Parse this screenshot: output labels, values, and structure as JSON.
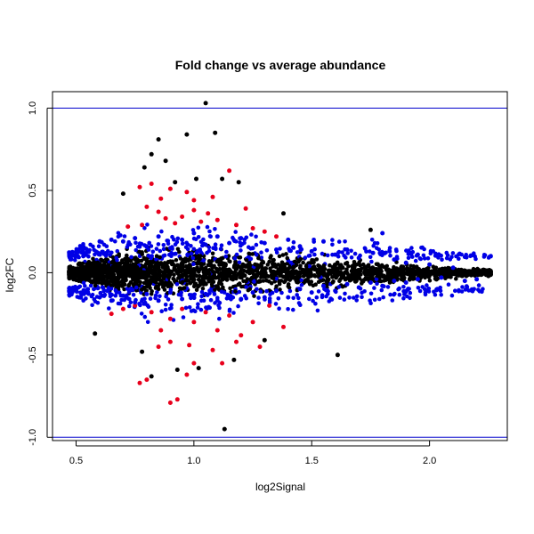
{
  "chart_data": {
    "type": "scatter",
    "title": "Fold change vs average abundance",
    "xlabel": "log2Signal",
    "ylabel": "log2FC",
    "xlim": [
      0.4,
      2.33
    ],
    "ylim": [
      -1.02,
      1.1
    ],
    "x_ticks": [
      0.5,
      1.0,
      1.5,
      2.0
    ],
    "x_tick_labels": [
      "0.5",
      "1.0",
      "1.5",
      "2.0"
    ],
    "y_ticks": [
      -1.0,
      -0.5,
      0.0,
      0.5,
      1.0
    ],
    "y_tick_labels": [
      "-1.0",
      "-0.5",
      "0.0",
      "0.5",
      "1.0"
    ],
    "hlines": [
      1.0,
      -1.0
    ],
    "grid": false,
    "colors": {
      "points": "#000000",
      "hline": "#0000cc",
      "frame": "#000000"
    },
    "series": [
      {
        "color": "#000000",
        "points": [
          [
            1.05,
            1.03
          ],
          [
            0.97,
            0.84
          ],
          [
            1.09,
            0.85
          ],
          [
            0.85,
            0.81
          ],
          [
            0.82,
            0.72
          ],
          [
            0.88,
            0.68
          ],
          [
            0.79,
            0.64
          ],
          [
            1.01,
            0.57
          ],
          [
            1.12,
            0.57
          ],
          [
            1.19,
            0.55
          ],
          [
            0.92,
            0.55
          ],
          [
            0.7,
            0.48
          ],
          [
            1.38,
            0.36
          ],
          [
            1.75,
            0.26
          ],
          [
            1.13,
            -0.95
          ],
          [
            1.61,
            -0.5
          ],
          [
            0.82,
            -0.63
          ],
          [
            0.93,
            -0.59
          ],
          [
            1.17,
            -0.53
          ],
          [
            0.78,
            -0.48
          ],
          [
            1.02,
            -0.58
          ],
          [
            0.58,
            -0.37
          ],
          [
            1.3,
            -0.41
          ],
          [
            2.15,
            -0.01
          ],
          [
            2.2,
            0.0
          ],
          [
            2.25,
            -0.02
          ],
          [
            0.52,
            0.05
          ],
          [
            0.49,
            -0.04
          ]
        ]
      },
      {
        "color": "#e8001c",
        "points": [
          [
            0.77,
            0.52
          ],
          [
            0.82,
            0.54
          ],
          [
            0.9,
            0.51
          ],
          [
            0.97,
            0.49
          ],
          [
            1.08,
            0.46
          ],
          [
            1.15,
            0.62
          ],
          [
            0.8,
            0.4
          ],
          [
            0.85,
            0.37
          ],
          [
            0.88,
            0.33
          ],
          [
            0.92,
            0.3
          ],
          [
            0.95,
            0.34
          ],
          [
            1.0,
            0.38
          ],
          [
            1.03,
            0.31
          ],
          [
            1.06,
            0.36
          ],
          [
            1.1,
            0.32
          ],
          [
            1.18,
            0.29
          ],
          [
            1.22,
            0.39
          ],
          [
            1.25,
            0.27
          ],
          [
            0.72,
            0.28
          ],
          [
            0.78,
            0.29
          ],
          [
            1.3,
            0.25
          ],
          [
            1.35,
            0.22
          ],
          [
            1.0,
            0.44
          ],
          [
            0.86,
            0.45
          ],
          [
            0.75,
            -0.2
          ],
          [
            0.82,
            -0.24
          ],
          [
            0.9,
            -0.28
          ],
          [
            0.95,
            -0.22
          ],
          [
            1.0,
            -0.3
          ],
          [
            1.05,
            -0.24
          ],
          [
            1.1,
            -0.35
          ],
          [
            1.15,
            -0.26
          ],
          [
            1.2,
            -0.38
          ],
          [
            1.25,
            -0.3
          ],
          [
            0.85,
            -0.45
          ],
          [
            0.9,
            -0.42
          ],
          [
            0.98,
            -0.44
          ],
          [
            1.08,
            -0.47
          ],
          [
            0.77,
            -0.67
          ],
          [
            0.8,
            -0.65
          ],
          [
            0.9,
            -0.79
          ],
          [
            0.93,
            -0.77
          ],
          [
            1.0,
            -0.55
          ],
          [
            0.97,
            -0.62
          ],
          [
            1.12,
            -0.55
          ],
          [
            1.28,
            -0.45
          ],
          [
            0.7,
            -0.22
          ],
          [
            0.65,
            -0.25
          ],
          [
            0.86,
            -0.35
          ],
          [
            1.18,
            -0.42
          ],
          [
            1.32,
            -0.2
          ],
          [
            1.38,
            -0.33
          ]
        ]
      },
      {
        "color": "#0000e6",
        "points": [
          [
            0.6,
            0.19
          ],
          [
            0.65,
            0.2
          ],
          [
            0.7,
            0.19
          ],
          [
            0.75,
            0.21
          ],
          [
            0.8,
            0.16
          ],
          [
            0.85,
            0.22
          ],
          [
            0.9,
            0.15
          ],
          [
            0.95,
            0.2
          ],
          [
            1.0,
            0.24
          ],
          [
            1.05,
            0.17
          ],
          [
            1.1,
            0.22
          ],
          [
            1.15,
            0.18
          ],
          [
            1.2,
            0.21
          ],
          [
            1.25,
            0.15
          ],
          [
            1.3,
            0.18
          ],
          [
            1.35,
            0.14
          ],
          [
            1.4,
            0.2
          ],
          [
            1.45,
            0.16
          ],
          [
            1.5,
            0.13
          ],
          [
            1.55,
            0.19
          ],
          [
            1.6,
            0.11
          ],
          [
            1.65,
            0.14
          ],
          [
            1.7,
            0.09
          ],
          [
            1.76,
            0.12
          ],
          [
            1.8,
            0.24
          ],
          [
            1.85,
            0.08
          ],
          [
            1.9,
            0.06
          ],
          [
            1.95,
            0.11
          ],
          [
            2.0,
            0.05
          ],
          [
            2.1,
            0.03
          ],
          [
            0.55,
            -0.1
          ],
          [
            0.6,
            -0.15
          ],
          [
            0.65,
            -0.17
          ],
          [
            0.7,
            -0.14
          ],
          [
            0.75,
            -0.18
          ],
          [
            0.8,
            -0.13
          ],
          [
            0.85,
            -0.17
          ],
          [
            0.9,
            -0.12
          ],
          [
            0.95,
            -0.16
          ],
          [
            1.0,
            -0.15
          ],
          [
            1.05,
            -0.13
          ],
          [
            1.1,
            -0.17
          ],
          [
            1.15,
            -0.14
          ],
          [
            1.2,
            -0.16
          ],
          [
            1.25,
            -0.12
          ],
          [
            1.3,
            -0.15
          ],
          [
            1.35,
            -0.11
          ],
          [
            1.4,
            -0.15
          ],
          [
            1.45,
            -0.1
          ],
          [
            1.5,
            -0.12
          ],
          [
            1.55,
            -0.08
          ],
          [
            1.6,
            -0.11
          ],
          [
            1.65,
            -0.07
          ],
          [
            1.7,
            -0.09
          ],
          [
            1.75,
            -0.06
          ],
          [
            1.8,
            -0.08
          ],
          [
            1.85,
            -0.05
          ],
          [
            1.9,
            -0.06
          ],
          [
            1.95,
            -0.04
          ],
          [
            2.05,
            -0.03
          ],
          [
            2.15,
            -0.05
          ],
          [
            2.2,
            -0.04
          ]
        ]
      }
    ]
  }
}
